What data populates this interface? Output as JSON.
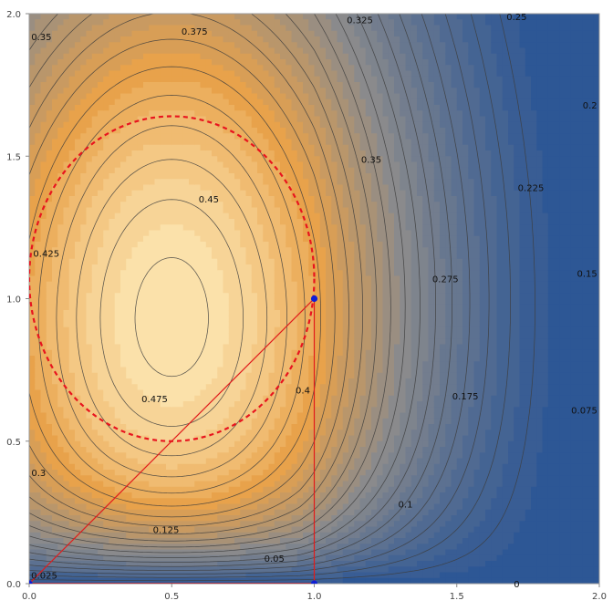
{
  "chart_data": {
    "type": "contour",
    "title": "",
    "xlabel": "",
    "ylabel": "",
    "xlim": [
      0,
      2
    ],
    "ylim": [
      0,
      2
    ],
    "x_ticks": [
      "0.0",
      "0.5",
      "1.0",
      "1.5",
      "2.0"
    ],
    "y_ticks": [
      "0.0",
      "0.5",
      "1.0",
      "1.5",
      "2.0"
    ],
    "colormap": {
      "low": "#2d5795",
      "mid": "#8a8a8c",
      "high": "#e8a24b",
      "top": "#ffedbd"
    },
    "contour_labels": [
      {
        "text": "0.375",
        "x": 0.58,
        "y": 1.94
      },
      {
        "text": "0.325",
        "x": 1.16,
        "y": 1.98
      },
      {
        "text": "0.25",
        "x": 1.71,
        "y": 1.99
      },
      {
        "text": "0.35",
        "x": 0.0,
        "y": 1.92
      },
      {
        "text": "0.2",
        "x": 1.99,
        "y": 1.68
      },
      {
        "text": "0.35",
        "x": 1.2,
        "y": 1.49
      },
      {
        "text": "0.225",
        "x": 1.76,
        "y": 1.39
      },
      {
        "text": "0.45",
        "x": 0.63,
        "y": 1.35
      },
      {
        "text": "0.425",
        "x": 0.06,
        "y": 1.16
      },
      {
        "text": "0.275",
        "x": 1.46,
        "y": 1.07
      },
      {
        "text": "0.15",
        "x": 1.99,
        "y": 1.09
      },
      {
        "text": "0.475",
        "x": 0.44,
        "y": 0.65
      },
      {
        "text": "0.4",
        "x": 0.96,
        "y": 0.68
      },
      {
        "text": "0.175",
        "x": 1.53,
        "y": 0.66
      },
      {
        "text": "0.075",
        "x": 1.97,
        "y": 0.61
      },
      {
        "text": "0.3",
        "x": 0.02,
        "y": 0.39
      },
      {
        "text": "0.1",
        "x": 1.32,
        "y": 0.28
      },
      {
        "text": "0.125",
        "x": 0.48,
        "y": 0.19
      },
      {
        "text": "0.05",
        "x": 0.86,
        "y": 0.09
      },
      {
        "text": "0.025",
        "x": 0.0,
        "y": 0.03
      },
      {
        "text": "0",
        "x": 1.71,
        "y": 0.0
      }
    ],
    "dashed_ellipse": {
      "center": [
        0.5,
        1.07
      ],
      "rx": 0.5,
      "ry": 0.57,
      "color": "#e8141e"
    },
    "triangle": {
      "points": [
        [
          0,
          0
        ],
        [
          1,
          0
        ],
        [
          1,
          1
        ]
      ],
      "color": "#e11b1b"
    },
    "points": [
      {
        "x": 0,
        "y": 0
      },
      {
        "x": 1,
        "y": 0
      },
      {
        "x": 1,
        "y": 1
      }
    ],
    "point_color": "#0f1fd6"
  }
}
